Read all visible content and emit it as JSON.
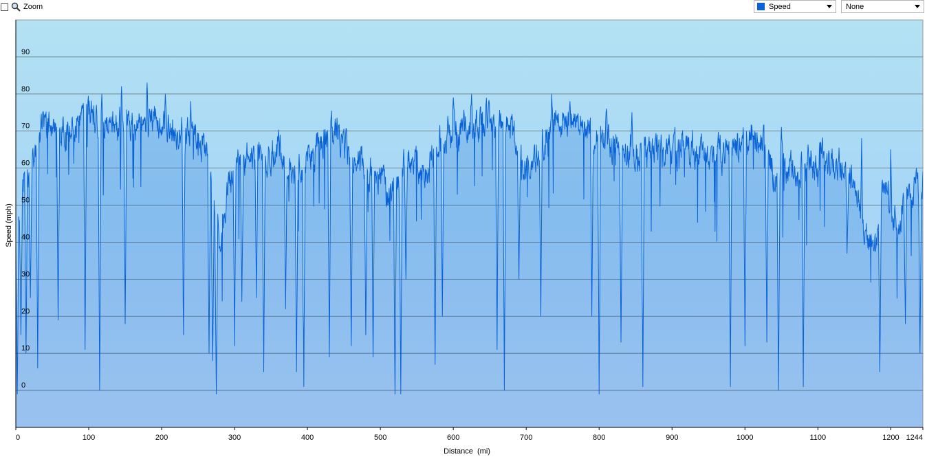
{
  "toolbar": {
    "zoom_label": "Zoom",
    "metric_select": {
      "value": "Speed",
      "color": "#0a63d6"
    },
    "secondary_select": {
      "value": "None"
    }
  },
  "chart_data": {
    "type": "area",
    "xlabel": "Distance  (mi)",
    "ylabel": "Speed (mph)",
    "xlim": [
      0,
      1244
    ],
    "ylim": [
      -10,
      100
    ],
    "x_ticks": [
      0,
      100,
      200,
      300,
      400,
      500,
      600,
      700,
      800,
      900,
      1000,
      1100,
      1200,
      1244
    ],
    "y_ticks": [
      0,
      10,
      20,
      30,
      40,
      50,
      60,
      70,
      80,
      90
    ],
    "grid": true,
    "series": [
      {
        "color": "#0a63d6",
        "baseline": [
          [
            0,
            40
          ],
          [
            10,
            55
          ],
          [
            20,
            60
          ],
          [
            30,
            68
          ],
          [
            40,
            71
          ],
          [
            60,
            70
          ],
          [
            80,
            72
          ],
          [
            100,
            75
          ],
          [
            120,
            72
          ],
          [
            140,
            73
          ],
          [
            160,
            71
          ],
          [
            180,
            73
          ],
          [
            200,
            72
          ],
          [
            220,
            70
          ],
          [
            240,
            68
          ],
          [
            260,
            67
          ],
          [
            270,
            50
          ],
          [
            280,
            40
          ],
          [
            290,
            52
          ],
          [
            300,
            60
          ],
          [
            320,
            62
          ],
          [
            340,
            63
          ],
          [
            360,
            65
          ],
          [
            380,
            60
          ],
          [
            400,
            62
          ],
          [
            420,
            67
          ],
          [
            440,
            70
          ],
          [
            460,
            63
          ],
          [
            480,
            60
          ],
          [
            500,
            58
          ],
          [
            510,
            52
          ],
          [
            520,
            55
          ],
          [
            530,
            60
          ],
          [
            540,
            62
          ],
          [
            560,
            58
          ],
          [
            580,
            68
          ],
          [
            600,
            70
          ],
          [
            620,
            72
          ],
          [
            640,
            72
          ],
          [
            660,
            73
          ],
          [
            680,
            70
          ],
          [
            700,
            60
          ],
          [
            720,
            65
          ],
          [
            740,
            72
          ],
          [
            760,
            74
          ],
          [
            780,
            72
          ],
          [
            800,
            70
          ],
          [
            820,
            66
          ],
          [
            840,
            65
          ],
          [
            860,
            63
          ],
          [
            880,
            64
          ],
          [
            900,
            64
          ],
          [
            920,
            66
          ],
          [
            940,
            65
          ],
          [
            960,
            64
          ],
          [
            980,
            65
          ],
          [
            1000,
            68
          ],
          [
            1010,
            70
          ],
          [
            1030,
            66
          ],
          [
            1040,
            58
          ],
          [
            1050,
            62
          ],
          [
            1060,
            60
          ],
          [
            1080,
            60
          ],
          [
            1100,
            62
          ],
          [
            1120,
            62
          ],
          [
            1140,
            60
          ],
          [
            1150,
            55
          ],
          [
            1160,
            45
          ],
          [
            1170,
            42
          ],
          [
            1180,
            38
          ],
          [
            1190,
            55
          ],
          [
            1200,
            50
          ],
          [
            1210,
            45
          ],
          [
            1220,
            52
          ],
          [
            1244,
            55
          ]
        ],
        "spikes_up": [
          [
            95,
            84
          ],
          [
            118,
            80
          ],
          [
            145,
            82
          ],
          [
            180,
            83
          ],
          [
            205,
            80
          ],
          [
            240,
            78
          ],
          [
            600,
            79
          ],
          [
            625,
            80
          ],
          [
            720,
            79
          ],
          [
            735,
            80
          ],
          [
            760,
            78
          ],
          [
            810,
            76
          ],
          [
            845,
            75
          ],
          [
            860,
            76
          ],
          [
            1000,
            75
          ],
          [
            1050,
            71
          ],
          [
            1100,
            70
          ],
          [
            1160,
            68
          ],
          [
            1200,
            65
          ],
          [
            1235,
            60
          ]
        ],
        "dips": [
          [
            2,
            -1
          ],
          [
            7,
            15
          ],
          [
            14,
            10
          ],
          [
            20,
            25
          ],
          [
            30,
            6
          ],
          [
            58,
            19
          ],
          [
            95,
            11
          ],
          [
            115,
            0
          ],
          [
            150,
            18
          ],
          [
            230,
            15
          ],
          [
            265,
            10
          ],
          [
            270,
            8
          ],
          [
            275,
            -1
          ],
          [
            300,
            12
          ],
          [
            310,
            24
          ],
          [
            330,
            25
          ],
          [
            340,
            5
          ],
          [
            370,
            22
          ],
          [
            385,
            5
          ],
          [
            395,
            1
          ],
          [
            430,
            9
          ],
          [
            460,
            12
          ],
          [
            480,
            15
          ],
          [
            490,
            9
          ],
          [
            520,
            -1
          ],
          [
            528,
            -1
          ],
          [
            535,
            30
          ],
          [
            575,
            7
          ],
          [
            585,
            20
          ],
          [
            660,
            11
          ],
          [
            670,
            0
          ],
          [
            690,
            30
          ],
          [
            720,
            20
          ],
          [
            790,
            20
          ],
          [
            800,
            -1
          ],
          [
            830,
            13
          ],
          [
            860,
            1
          ],
          [
            925,
            60
          ],
          [
            980,
            1
          ],
          [
            1000,
            12
          ],
          [
            1030,
            13
          ],
          [
            1046,
            0
          ],
          [
            1080,
            1
          ],
          [
            1100,
            55
          ],
          [
            1140,
            37
          ],
          [
            1175,
            40
          ],
          [
            1185,
            5
          ],
          [
            1220,
            18
          ],
          [
            1240,
            10
          ]
        ]
      }
    ]
  }
}
